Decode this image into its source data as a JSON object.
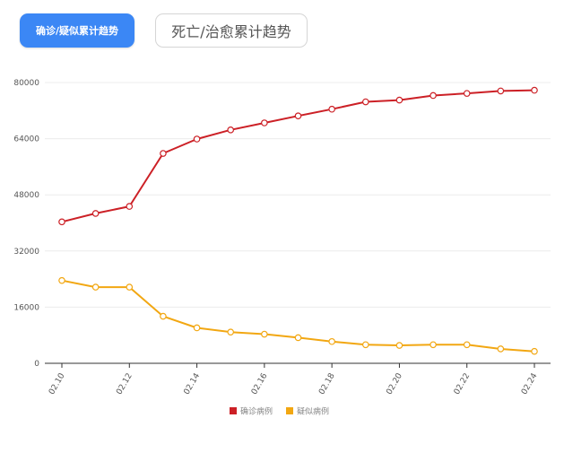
{
  "tabs": [
    {
      "label": "确诊/疑似累计趋势",
      "active": true
    },
    {
      "label": "死亡/治愈累计趋势",
      "active": false
    }
  ],
  "colors": {
    "confirmed": "#cc2026",
    "suspected": "#f2a712",
    "tab_active": "#3b87f5",
    "grid": "#ececec",
    "axis": "#333333"
  },
  "chart_data": {
    "type": "line",
    "categories": [
      "02.10",
      "02.11",
      "02.12",
      "02.13",
      "02.14",
      "02.15",
      "02.16",
      "02.17",
      "02.18",
      "02.19",
      "02.20",
      "02.21",
      "02.22",
      "02.23",
      "02.24"
    ],
    "x_tick_labels": [
      "02.10",
      "02.12",
      "02.14",
      "02.16",
      "02.18",
      "02.20",
      "02.22",
      "02.24"
    ],
    "y_ticks": [
      "0",
      "16000",
      "32000",
      "48000",
      "64000",
      "80000"
    ],
    "ylim": [
      0,
      80000
    ],
    "grid": true,
    "legend_position": "bottom-center",
    "series": [
      {
        "name": "确诊病例",
        "values": [
          40300,
          42700,
          44700,
          59800,
          63900,
          66500,
          68500,
          70500,
          72400,
          74500,
          75000,
          76300,
          76900,
          77600,
          77800
        ]
      },
      {
        "name": "疑似病例",
        "values": [
          23600,
          21700,
          21700,
          13400,
          10100,
          8900,
          8300,
          7300,
          6200,
          5300,
          5100,
          5300,
          5300,
          4100,
          3400
        ]
      }
    ]
  }
}
